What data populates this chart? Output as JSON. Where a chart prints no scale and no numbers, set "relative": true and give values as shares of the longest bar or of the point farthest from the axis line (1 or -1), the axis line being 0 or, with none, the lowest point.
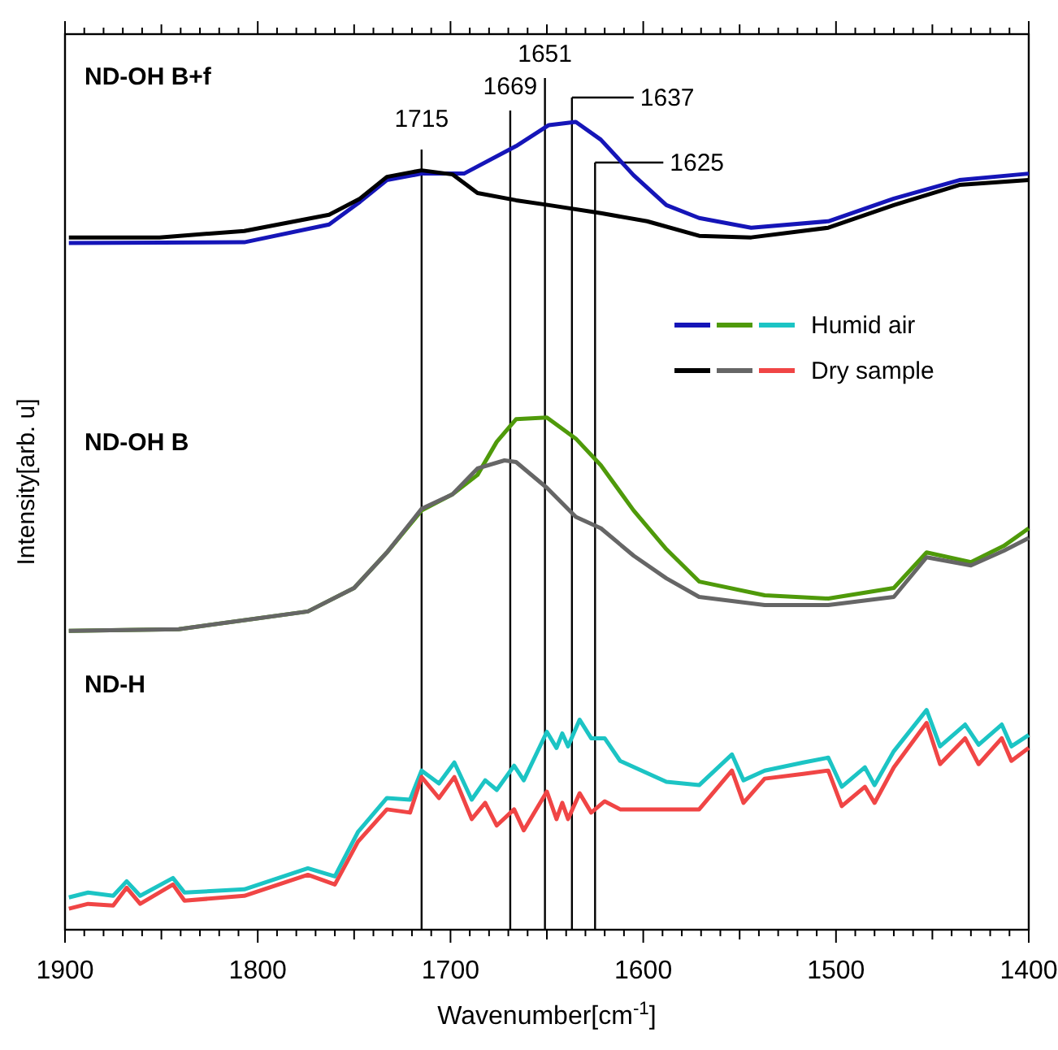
{
  "chart_data": {
    "type": "line",
    "relative": true,
    "xlabel": "Wavenumber[cm$^{-1}$]",
    "ylabel": "Intensity[arb. u]",
    "xlim": [
      1900,
      1400
    ],
    "xticks": [
      1900,
      {
        "value": 1890,
        "label": null
      },
      {
        "value": 1880,
        "label": null
      },
      {
        "value": 1870,
        "label": null
      },
      {
        "value": 1860,
        "label": null
      },
      {
        "value": 1850,
        "label": null
      },
      {
        "value": 1840,
        "label": null
      },
      {
        "value": 1830,
        "label": null
      },
      {
        "value": 1820,
        "label": null
      },
      {
        "value": 1810,
        "label": null
      },
      1800,
      {
        "value": 1790,
        "label": null
      },
      {
        "value": 1780,
        "label": null
      },
      {
        "value": 1770,
        "label": null
      },
      {
        "value": 1760,
        "label": null
      },
      {
        "value": 1750,
        "label": null
      },
      {
        "value": 1740,
        "label": null
      },
      {
        "value": 1730,
        "label": null
      },
      {
        "value": 1720,
        "label": null
      },
      {
        "value": 1710,
        "label": null
      },
      1700,
      {
        "value": 1690,
        "label": null
      },
      {
        "value": 1680,
        "label": null
      },
      {
        "value": 1670,
        "label": null
      },
      {
        "value": 1660,
        "label": null
      },
      {
        "value": 1650,
        "label": null
      },
      {
        "value": 1640,
        "label": null
      },
      {
        "value": 1630,
        "label": null
      },
      {
        "value": 1620,
        "label": null
      },
      {
        "value": 1610,
        "label": null
      },
      1600,
      {
        "value": 1590,
        "label": null
      },
      {
        "value": 1580,
        "label": null
      },
      {
        "value": 1570,
        "label": null
      },
      {
        "value": 1560,
        "label": null
      },
      {
        "value": 1550,
        "label": null
      },
      {
        "value": 1540,
        "label": null
      },
      {
        "value": 1530,
        "label": null
      },
      {
        "value": 1520,
        "label": null
      },
      {
        "value": 1510,
        "label": null
      },
      1500,
      {
        "value": 1490,
        "label": null
      },
      {
        "value": 1480,
        "label": null
      },
      {
        "value": 1470,
        "label": null
      },
      {
        "value": 1460,
        "label": null
      },
      {
        "value": 1450,
        "label": null
      },
      {
        "value": 1440,
        "label": null
      },
      {
        "value": 1430,
        "label": null
      },
      {
        "value": 1420,
        "label": null
      },
      {
        "value": 1410,
        "label": null
      },
      1400
    ],
    "legend": "right",
    "annotations": [
      "ND-OH B+f",
      "ND-OH B",
      "ND-H"
    ],
    "ref_lines": [
      {
        "axis": "x",
        "value": 1715,
        "label": "1715",
        "color": "#000000"
      },
      {
        "axis": "x",
        "value": 1669,
        "label": "1669",
        "color": "#000000"
      },
      {
        "axis": "x",
        "value": 1651,
        "label": "1651",
        "color": "#000000"
      },
      {
        "axis": "x",
        "value": 1637,
        "label": "1637",
        "color": "#000000"
      },
      {
        "axis": "x",
        "value": 1625,
        "label": "1625",
        "color": "#000000"
      }
    ],
    "series": [
      {
        "color": "#1515b8",
        "x": [
          1898,
          1807,
          1763,
          1747,
          1733,
          1715,
          1693,
          1666,
          1649,
          1635,
          1622,
          1605,
          1588,
          1571,
          1544,
          1504,
          1470,
          1436,
          1400
        ],
        "values": [
          0.85,
          0.851,
          0.873,
          0.901,
          0.928,
          0.936,
          0.936,
          0.97,
          0.996,
          1.0,
          0.978,
          0.934,
          0.897,
          0.881,
          0.869,
          0.877,
          0.905,
          0.928,
          0.936
        ]
      },
      {
        "color": "#000000",
        "x": [
          1898,
          1851,
          1807,
          1763,
          1747,
          1733,
          1715,
          1699,
          1686,
          1666,
          1649,
          1622,
          1598,
          1571,
          1544,
          1504,
          1470,
          1436,
          1400
        ],
        "values": [
          0.857,
          0.857,
          0.865,
          0.885,
          0.905,
          0.932,
          0.94,
          0.935,
          0.912,
          0.903,
          0.897,
          0.887,
          0.877,
          0.859,
          0.857,
          0.869,
          0.897,
          0.922,
          0.928
        ]
      },
      {
        "color": "#4f9a0a",
        "x": [
          1898,
          1841,
          1774,
          1750,
          1733,
          1715,
          1699,
          1686,
          1676,
          1666,
          1650,
          1635,
          1622,
          1605,
          1588,
          1571,
          1537,
          1504,
          1470,
          1453,
          1430,
          1413,
          1400
        ],
        "values": [
          0.37,
          0.372,
          0.394,
          0.423,
          0.467,
          0.519,
          0.539,
          0.563,
          0.604,
          0.632,
          0.634,
          0.608,
          0.575,
          0.519,
          0.471,
          0.431,
          0.414,
          0.41,
          0.423,
          0.467,
          0.455,
          0.475,
          0.497
        ]
      },
      {
        "color": "#666666",
        "x": [
          1898,
          1841,
          1774,
          1750,
          1733,
          1715,
          1699,
          1686,
          1672,
          1666,
          1650,
          1635,
          1622,
          1605,
          1588,
          1571,
          1537,
          1504,
          1470,
          1453,
          1430,
          1413,
          1400
        ],
        "values": [
          0.37,
          0.372,
          0.394,
          0.423,
          0.467,
          0.521,
          0.539,
          0.571,
          0.581,
          0.579,
          0.547,
          0.511,
          0.497,
          0.463,
          0.435,
          0.412,
          0.402,
          0.402,
          0.412,
          0.461,
          0.451,
          0.469,
          0.485
        ]
      },
      {
        "name": "Humid air",
        "color": "#1cc4c4",
        "x": [
          1898,
          1888,
          1875,
          1868,
          1861,
          1844,
          1838,
          1807,
          1774,
          1760,
          1748,
          1733,
          1721,
          1715,
          1706,
          1698,
          1689,
          1682,
          1676,
          1667,
          1662,
          1650,
          1645,
          1642,
          1639,
          1633,
          1627,
          1620,
          1612,
          1588,
          1571,
          1554,
          1548,
          1537,
          1517,
          1504,
          1497,
          1485,
          1480,
          1470,
          1453,
          1446,
          1433,
          1426,
          1414,
          1409,
          1400
        ],
        "values": [
          0.04,
          0.046,
          0.042,
          0.06,
          0.042,
          0.064,
          0.046,
          0.05,
          0.076,
          0.066,
          0.121,
          0.163,
          0.161,
          0.197,
          0.181,
          0.207,
          0.161,
          0.185,
          0.173,
          0.203,
          0.185,
          0.245,
          0.225,
          0.243,
          0.227,
          0.26,
          0.237,
          0.237,
          0.209,
          0.183,
          0.179,
          0.217,
          0.185,
          0.197,
          0.207,
          0.213,
          0.177,
          0.201,
          0.179,
          0.221,
          0.272,
          0.227,
          0.254,
          0.229,
          0.254,
          0.227,
          0.241
        ]
      },
      {
        "name": "Dry sample",
        "color": "#f04545",
        "x": [
          1898,
          1888,
          1875,
          1868,
          1861,
          1844,
          1838,
          1807,
          1774,
          1760,
          1748,
          1733,
          1721,
          1715,
          1706,
          1698,
          1689,
          1682,
          1676,
          1667,
          1662,
          1650,
          1645,
          1642,
          1639,
          1633,
          1627,
          1620,
          1612,
          1588,
          1571,
          1554,
          1548,
          1537,
          1517,
          1504,
          1497,
          1485,
          1480,
          1470,
          1453,
          1446,
          1433,
          1426,
          1414,
          1409,
          1400
        ],
        "values": [
          0.026,
          0.032,
          0.03,
          0.052,
          0.032,
          0.056,
          0.036,
          0.042,
          0.068,
          0.056,
          0.109,
          0.149,
          0.145,
          0.189,
          0.163,
          0.189,
          0.137,
          0.157,
          0.129,
          0.149,
          0.123,
          0.171,
          0.137,
          0.157,
          0.137,
          0.169,
          0.145,
          0.159,
          0.149,
          0.149,
          0.149,
          0.197,
          0.157,
          0.187,
          0.193,
          0.197,
          0.153,
          0.177,
          0.157,
          0.201,
          0.256,
          0.205,
          0.237,
          0.205,
          0.237,
          0.209,
          0.225
        ]
      }
    ]
  }
}
